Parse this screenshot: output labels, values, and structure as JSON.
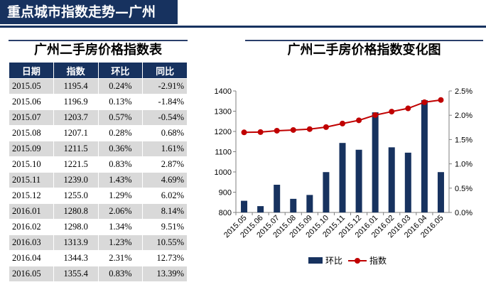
{
  "header": {
    "title": "重点城市指数走势—广州"
  },
  "table": {
    "title": "广州二手房价格指数表",
    "columns": [
      "日期",
      "指数",
      "环比",
      "同比"
    ],
    "rows": [
      [
        "2015.05",
        "1195.4",
        "0.24%",
        "-2.91%"
      ],
      [
        "2015.06",
        "1196.9",
        "0.13%",
        "-1.84%"
      ],
      [
        "2015.07",
        "1203.7",
        "0.57%",
        "-0.54%"
      ],
      [
        "2015.08",
        "1207.1",
        "0.28%",
        "0.68%"
      ],
      [
        "2015.09",
        "1211.5",
        "0.36%",
        "1.61%"
      ],
      [
        "2015.10",
        "1221.5",
        "0.83%",
        "2.87%"
      ],
      [
        "2015.11",
        "1239.0",
        "1.43%",
        "4.69%"
      ],
      [
        "2015.12",
        "1255.0",
        "1.29%",
        "6.02%"
      ],
      [
        "2016.01",
        "1280.8",
        "2.06%",
        "8.14%"
      ],
      [
        "2016.02",
        "1298.0",
        "1.34%",
        "9.51%"
      ],
      [
        "2016.03",
        "1313.9",
        "1.23%",
        "10.55%"
      ],
      [
        "2016.04",
        "1344.3",
        "2.31%",
        "12.73%"
      ],
      [
        "2016.05",
        "1355.4",
        "0.83%",
        "13.39%"
      ]
    ]
  },
  "chart_data": {
    "type": "bar",
    "title": "广州二手房价格指数变化图",
    "categories": [
      "2015.05",
      "2015.06",
      "2015.07",
      "2015.08",
      "2015.09",
      "2015.10",
      "2015.11",
      "2015.12",
      "2016.01",
      "2016.02",
      "2016.03",
      "2016.04",
      "2016.05"
    ],
    "series": [
      {
        "name": "环比",
        "type": "bar",
        "axis": "right",
        "unit": "%",
        "color": "#17325f",
        "values": [
          0.24,
          0.13,
          0.57,
          0.28,
          0.36,
          0.83,
          1.43,
          1.29,
          2.06,
          1.34,
          1.23,
          2.31,
          0.83
        ]
      },
      {
        "name": "指数",
        "type": "line",
        "axis": "left",
        "color": "#c00000",
        "values": [
          1195.4,
          1196.9,
          1203.7,
          1207.1,
          1211.5,
          1221.5,
          1239.0,
          1255.0,
          1280.8,
          1298.0,
          1313.9,
          1344.3,
          1355.4
        ]
      }
    ],
    "y_left": {
      "min": 800,
      "max": 1400,
      "ticks": [
        "800",
        "900",
        "1000",
        "1100",
        "1200",
        "1300",
        "1400"
      ]
    },
    "y_right": {
      "min": 0,
      "max": 2.5,
      "ticks": [
        "0.0%",
        "0.5%",
        "1.0%",
        "1.5%",
        "2.0%",
        "2.5%"
      ]
    },
    "grid": false,
    "legend": "bottom"
  }
}
